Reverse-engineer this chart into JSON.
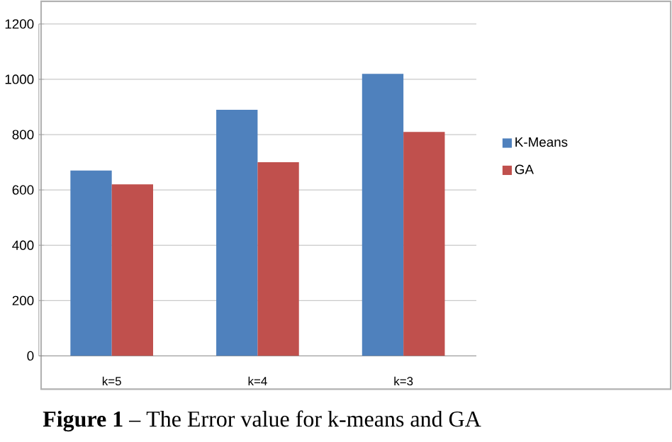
{
  "chart_data": {
    "type": "bar",
    "categories": [
      "k=5",
      "k=4",
      "k=3"
    ],
    "series": [
      {
        "name": "K-Means",
        "color": "#4f81bd",
        "values": [
          670,
          890,
          1020
        ]
      },
      {
        "name": "GA",
        "color": "#c0504d",
        "values": [
          620,
          700,
          810
        ]
      }
    ],
    "ylim": [
      0,
      1200
    ],
    "yticks": [
      0,
      200,
      400,
      600,
      800,
      1000,
      1200
    ],
    "grid": "y",
    "legend": "right",
    "annotations": [
      "**Figure 1** – The Error value for k-means and GA"
    ]
  }
}
